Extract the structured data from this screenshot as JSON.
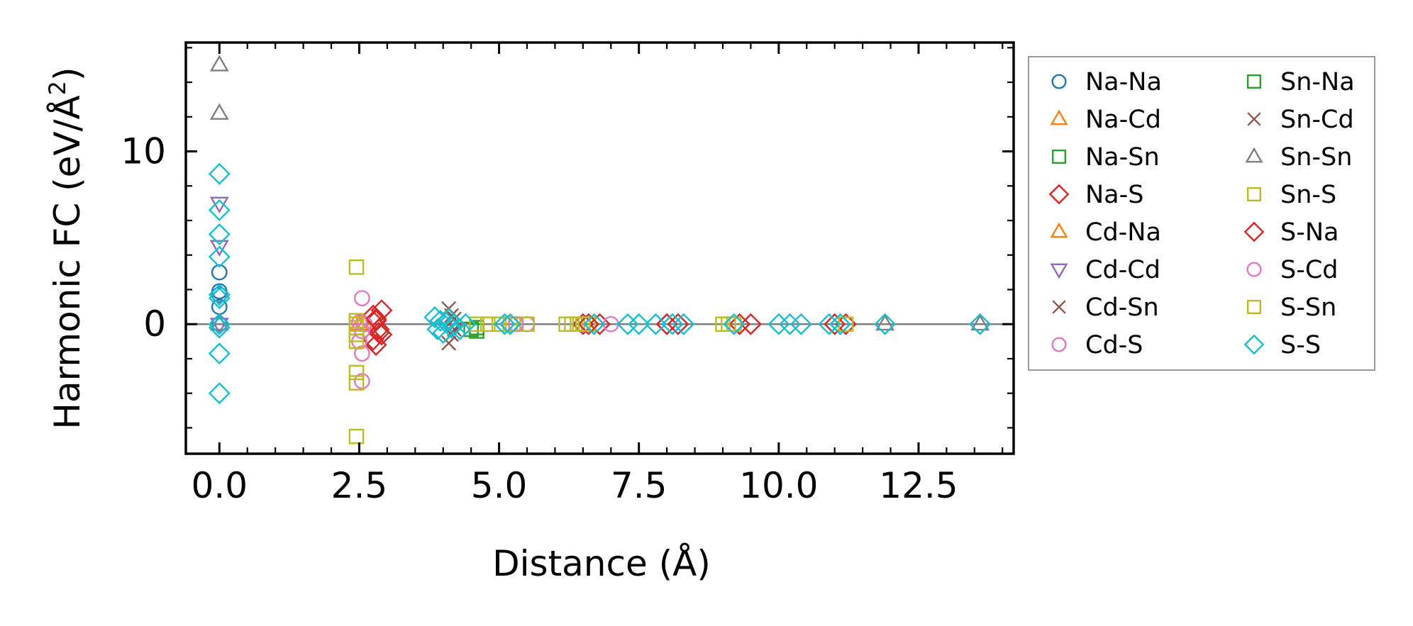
{
  "chart_data": {
    "type": "scatter",
    "xlabel": "Distance (Å)",
    "ylabel": "Harmonic FC (eV/Å²)",
    "ylabel_parts": {
      "main": "Harmonic FC (eV/Å",
      "sup": "2",
      "close": ")"
    },
    "xlim": [
      -0.6,
      14.2
    ],
    "ylim": [
      -7.5,
      16.3
    ],
    "x_ticks": [
      0.0,
      2.5,
      5.0,
      7.5,
      10.0,
      12.5
    ],
    "x_tick_labels": [
      "0.0",
      "2.5",
      "5.0",
      "7.5",
      "10.0",
      "12.5"
    ],
    "y_ticks": [
      0,
      10
    ],
    "y_tick_labels": [
      "0",
      "10"
    ],
    "x_minor_step": 0.5,
    "y_minor_step": 2,
    "zero_line": true,
    "legend_location": "outside-right",
    "legend_columns": 2,
    "series": [
      {
        "name": "Na-Na",
        "marker": "circle",
        "color": "#1f77b4",
        "points": [
          [
            0,
            3.0
          ],
          [
            0,
            1.9
          ],
          [
            0,
            1.7
          ],
          [
            0,
            1.0
          ],
          [
            0,
            0
          ]
        ]
      },
      {
        "name": "Na-Cd",
        "marker": "triangle-up",
        "color": "#ff7f0e",
        "points": [
          [
            0,
            0
          ],
          [
            2.5,
            0
          ]
        ]
      },
      {
        "name": "Na-Sn",
        "marker": "square",
        "color": "#2ca02c",
        "points": [
          [
            4.5,
            -0.3
          ],
          [
            4.6,
            -0.4
          ]
        ]
      },
      {
        "name": "Na-S",
        "marker": "diamond",
        "color": "#d62728",
        "points": [
          [
            2.75,
            0.5
          ],
          [
            2.8,
            0.2
          ],
          [
            2.85,
            -0.3
          ],
          [
            2.9,
            -0.6
          ],
          [
            2.75,
            -0.9
          ],
          [
            2.8,
            -1.2
          ],
          [
            2.9,
            0.8
          ],
          [
            6.5,
            0
          ],
          [
            6.8,
            0
          ],
          [
            8.0,
            0
          ],
          [
            8.2,
            0
          ],
          [
            9.3,
            0
          ],
          [
            9.5,
            0
          ],
          [
            11.0,
            0
          ],
          [
            11.2,
            0
          ]
        ]
      },
      {
        "name": "Cd-Na",
        "marker": "triangle-up",
        "color": "#ff7f0e",
        "points": [
          [
            0,
            0
          ],
          [
            2.6,
            0
          ]
        ]
      },
      {
        "name": "Cd-Cd",
        "marker": "triangle-down",
        "color": "#9467bd",
        "points": [
          [
            0,
            7.0
          ],
          [
            0,
            4.5
          ],
          [
            0,
            0
          ]
        ]
      },
      {
        "name": "Cd-Sn",
        "marker": "x",
        "color": "#8c564b",
        "points": [
          [
            4.1,
            0.9
          ],
          [
            4.1,
            -1.1
          ],
          [
            4.2,
            0.3
          ],
          [
            4.2,
            -0.3
          ]
        ]
      },
      {
        "name": "Cd-S",
        "marker": "circle",
        "color": "#e377c2",
        "points": [
          [
            2.55,
            1.5
          ],
          [
            2.5,
            -1.0
          ],
          [
            2.55,
            -1.7
          ],
          [
            2.55,
            -3.3
          ],
          [
            2.6,
            0
          ],
          [
            5.2,
            0
          ],
          [
            5.5,
            0
          ],
          [
            7.0,
            0
          ]
        ]
      },
      {
        "name": "Sn-Na",
        "marker": "square",
        "color": "#2ca02c",
        "points": [
          [
            4.6,
            -0.2
          ]
        ]
      },
      {
        "name": "Sn-Cd",
        "marker": "x",
        "color": "#8c564b",
        "points": [
          [
            4.15,
            0.5
          ],
          [
            4.15,
            -0.6
          ]
        ]
      },
      {
        "name": "Sn-Sn",
        "marker": "triangle-up",
        "color": "#7f7f7f",
        "points": [
          [
            0,
            15.0
          ],
          [
            0,
            12.2
          ],
          [
            0,
            0
          ],
          [
            11.9,
            0
          ],
          [
            13.6,
            0
          ]
        ]
      },
      {
        "name": "Sn-S",
        "marker": "square",
        "color": "#bcbd22",
        "points": [
          [
            2.45,
            3.3
          ],
          [
            2.45,
            0.2
          ],
          [
            2.45,
            -0.2
          ],
          [
            2.45,
            -1.0
          ],
          [
            2.45,
            -2.8
          ],
          [
            2.45,
            -3.4
          ],
          [
            2.45,
            -6.5
          ],
          [
            4.6,
            0
          ],
          [
            5.0,
            0
          ],
          [
            5.3,
            0
          ],
          [
            5.5,
            0
          ],
          [
            6.2,
            0
          ],
          [
            6.4,
            0
          ],
          [
            6.6,
            0
          ],
          [
            9.0,
            0
          ],
          [
            9.2,
            0
          ],
          [
            11.2,
            0
          ]
        ]
      },
      {
        "name": "S-Na",
        "marker": "diamond",
        "color": "#d62728",
        "points": [
          [
            2.8,
            0.3
          ],
          [
            2.85,
            -0.5
          ],
          [
            6.6,
            0
          ],
          [
            8.0,
            0
          ]
        ]
      },
      {
        "name": "S-Cd",
        "marker": "circle",
        "color": "#e377c2",
        "points": [
          [
            2.5,
            0.1
          ],
          [
            2.55,
            -0.4
          ],
          [
            5.3,
            0
          ]
        ]
      },
      {
        "name": "S-Sn",
        "marker": "square",
        "color": "#bcbd22",
        "points": [
          [
            2.45,
            0
          ],
          [
            2.45,
            -0.6
          ],
          [
            4.8,
            0
          ],
          [
            5.2,
            0
          ],
          [
            6.3,
            0
          ],
          [
            6.5,
            0
          ],
          [
            9.1,
            0
          ]
        ]
      },
      {
        "name": "S-S",
        "marker": "diamond",
        "color": "#17becf",
        "points": [
          [
            0,
            8.7
          ],
          [
            0,
            6.6
          ],
          [
            0,
            5.2
          ],
          [
            0,
            3.9
          ],
          [
            0,
            1.7
          ],
          [
            0,
            1.5
          ],
          [
            0,
            0
          ],
          [
            0,
            -0.2
          ],
          [
            0,
            -1.7
          ],
          [
            0,
            -4.0
          ],
          [
            3.85,
            0.4
          ],
          [
            3.9,
            -0.3
          ],
          [
            3.95,
            0.2
          ],
          [
            4.0,
            -0.5
          ],
          [
            4.05,
            0.1
          ],
          [
            4.1,
            0.3
          ],
          [
            4.15,
            -0.2
          ],
          [
            4.2,
            0
          ],
          [
            4.3,
            -0.3
          ],
          [
            4.4,
            0
          ],
          [
            5.1,
            0
          ],
          [
            5.2,
            0
          ],
          [
            6.7,
            0
          ],
          [
            7.3,
            0
          ],
          [
            7.5,
            0
          ],
          [
            7.8,
            0
          ],
          [
            8.1,
            0
          ],
          [
            8.3,
            0
          ],
          [
            9.2,
            0
          ],
          [
            10.0,
            0
          ],
          [
            10.2,
            0
          ],
          [
            10.4,
            0
          ],
          [
            10.9,
            0
          ],
          [
            11.1,
            0
          ],
          [
            11.9,
            0
          ],
          [
            13.6,
            0
          ]
        ]
      }
    ]
  }
}
